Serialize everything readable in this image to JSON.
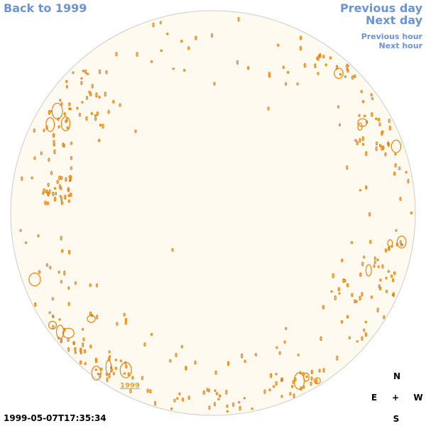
{
  "nav": {
    "back": "Back to 1999",
    "previous_day": "Previous day",
    "next_day": "Next day",
    "previous_hour": "Previous hour",
    "next_hour": "Next hour"
  },
  "image": {
    "year_label": "1999",
    "timestamp": "1999-05-07T17:35:34",
    "disk_fill": "#fffaf0",
    "disk_border": "#cccccc",
    "contour_color": "#e8820c"
  },
  "compass": {
    "north": "N",
    "east": "E",
    "center": "+",
    "west": "W",
    "south": "S"
  }
}
